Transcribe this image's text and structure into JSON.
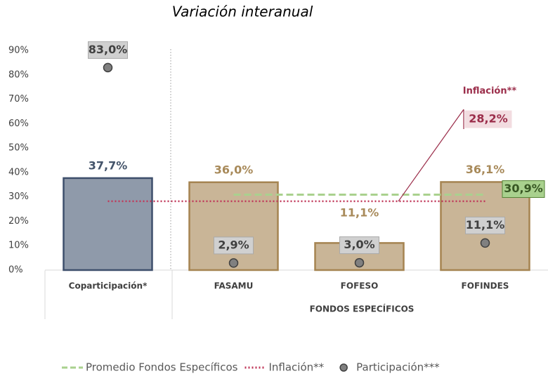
{
  "chart_data": {
    "type": "bar",
    "title": "Variación interanual",
    "categories": [
      "Coparticipación*",
      "FASAMU",
      "FOFESO",
      "FOFINDES"
    ],
    "group_label": "FONDOS ESPECÍFICOS",
    "ylim": [
      0,
      90
    ],
    "yticks": [
      {
        "value": 0,
        "label": "0%"
      },
      {
        "value": 10,
        "label": "10%"
      },
      {
        "value": 20,
        "label": "20%"
      },
      {
        "value": 30,
        "label": "30%"
      },
      {
        "value": 40,
        "label": "40%"
      },
      {
        "value": 50,
        "label": "50%"
      },
      {
        "value": 60,
        "label": "60%"
      },
      {
        "value": 70,
        "label": "70%"
      },
      {
        "value": 80,
        "label": "80%"
      },
      {
        "value": 90,
        "label": "90%"
      }
    ],
    "bars": {
      "values": [
        37.7,
        36.0,
        11.1,
        36.1
      ],
      "value_labels": [
        "37,7%",
        "36,0%",
        "11,1%",
        "36,1%"
      ],
      "colors": [
        "#8f9aaa",
        "#c9b597",
        "#c9b597",
        "#c9b597"
      ],
      "edge_colors": [
        "#3e4f6c",
        "#a58451",
        "#a58451",
        "#a58451"
      ],
      "label_colors": [
        "#44546a",
        "#a88a5a",
        "#a88a5a",
        "#a88a5a"
      ]
    },
    "series": [
      {
        "name": "Promedio Fondos Específicos",
        "color": "#a9d18e",
        "value": 30.9,
        "value_label": "30,9%",
        "style": "dashed"
      },
      {
        "name": "Inflación**",
        "color": "#c0385a",
        "value": 28.2,
        "value_label": "28,2%",
        "style": "dotted"
      },
      {
        "name": "Participación***",
        "color": "#808080",
        "values": [
          83.0,
          2.9,
          3.0,
          11.1
        ],
        "value_labels": [
          "83,0%",
          "2,9%",
          "3,0%",
          "11,1%"
        ],
        "style": "marker"
      }
    ]
  }
}
